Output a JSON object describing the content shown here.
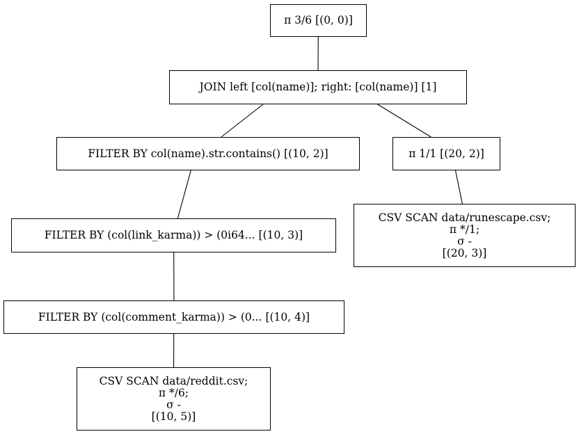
{
  "nodes": {
    "projection_top": {
      "text": "π 3/6 [(0, 0)]"
    },
    "join": {
      "text": "JOIN left [col(name)]; right: [col(name)] [1]"
    },
    "filter_name_contains": {
      "text": "FILTER BY col(name).str.contains() [(10, 2)]"
    },
    "projection_right": {
      "text": "π 1/1 [(20, 2)]"
    },
    "filter_link_karma": {
      "text": "FILTER BY (col(link_karma)) > (0i64... [(10, 3)]"
    },
    "csv_scan_runescape": {
      "lines": [
        "CSV SCAN data/runescape.csv;",
        "π */1;",
        "σ -",
        "[(20, 3)]"
      ]
    },
    "filter_comment_karma": {
      "text": "FILTER BY (col(comment_karma)) > (0... [(10, 4)]"
    },
    "csv_scan_reddit": {
      "lines": [
        "CSV SCAN data/reddit.csv;",
        "π */6;",
        "σ -",
        "[(10, 5)]"
      ]
    }
  },
  "edges": [
    [
      "projection_top",
      "join"
    ],
    [
      "join",
      "filter_name_contains"
    ],
    [
      "join",
      "projection_right"
    ],
    [
      "projection_right",
      "csv_scan_runescape"
    ],
    [
      "filter_name_contains",
      "filter_link_karma"
    ],
    [
      "filter_link_karma",
      "filter_comment_karma"
    ],
    [
      "filter_comment_karma",
      "csv_scan_reddit"
    ]
  ]
}
